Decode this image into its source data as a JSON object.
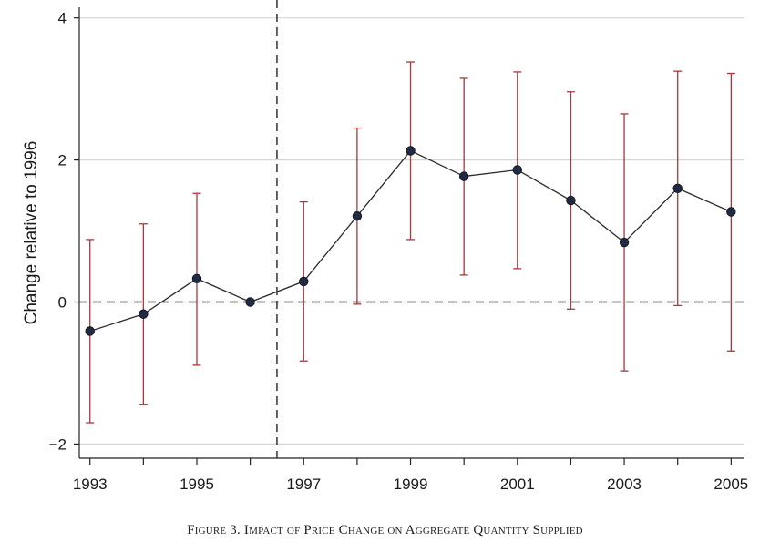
{
  "caption": "Figure 3. Impact of Price Change on Aggregate Quantity Supplied",
  "chart_data": {
    "type": "line",
    "title": "",
    "xlabel": "",
    "ylabel": "Change relative to 1996",
    "x": [
      1993,
      1994,
      1995,
      1996,
      1997,
      1998,
      1999,
      2000,
      2001,
      2002,
      2003,
      2004,
      2005
    ],
    "series": [
      {
        "values": [
          -0.41,
          -0.17,
          0.33,
          0.0,
          0.29,
          1.21,
          2.13,
          1.77,
          1.86,
          1.43,
          0.84,
          1.6,
          1.27
        ],
        "ci_lower": [
          -1.7,
          -1.44,
          -0.89,
          0.0,
          -0.83,
          -0.03,
          0.88,
          0.38,
          0.47,
          -0.1,
          -0.97,
          -0.05,
          -0.69
        ],
        "ci_upper": [
          0.88,
          1.1,
          1.53,
          0.0,
          1.41,
          2.45,
          3.38,
          3.15,
          3.24,
          2.96,
          2.65,
          3.25,
          3.22
        ]
      }
    ],
    "xticks": [
      1993,
      1995,
      1997,
      1999,
      2001,
      2003,
      2005
    ],
    "yticks": [
      -2,
      0,
      2,
      4
    ],
    "xlim": [
      1992.8,
      2005.25
    ],
    "ylim": [
      -2.2,
      4.15
    ],
    "reference_lines": {
      "horizontal_y": 0,
      "vertical_x": 1996.5
    },
    "grid": "horizontal",
    "colors": {
      "line": "#2b2b2b",
      "marker": "#1f2a44",
      "error_bar": "#a8383b",
      "grid": "#d6d6d6",
      "reference": "#222222"
    }
  }
}
